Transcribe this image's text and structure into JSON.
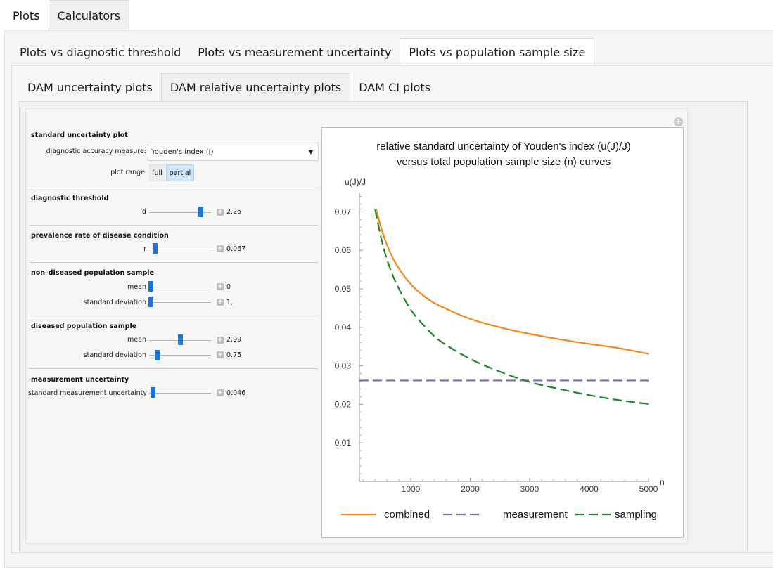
{
  "tabs_top": [
    "Plots",
    "Calculators"
  ],
  "tabs_plots": [
    "Plots vs diagnostic threshold",
    "Plots vs measurement uncertainty",
    "Plots vs population sample size"
  ],
  "tabs_dam": [
    "DAM uncertainty plots",
    "DAM relative uncertainty plots",
    "DAM CI plots"
  ],
  "controls": {
    "section1": "standard uncertainty plot",
    "dam_label": "diagnostic accuracy measure:",
    "dam_value": "Youden's index (J)",
    "range_label": "plot range",
    "range_full": "full",
    "range_partial": "partial",
    "range_selected": "partial",
    "section2": "diagnostic threshold",
    "d_label": "d",
    "d_value": "2.26",
    "section3": "prevalence rate of disease condition",
    "r_label": "r",
    "r_value": "0.067",
    "section4": "non–diseased population sample",
    "nd_mean_label": "mean",
    "nd_mean_value": "0",
    "nd_sd_label": "standard deviation",
    "nd_sd_value": "1.",
    "section5": "diseased population sample",
    "d_mean_label": "mean",
    "d_mean_value": "2.99",
    "d_sd_label": "standard deviation",
    "d_sd_value": "0.75",
    "section6": "measurement uncertainty",
    "mu_label": "standard measurement uncertainty",
    "mu_value": "0.046"
  },
  "chart_data": {
    "type": "line",
    "title": "relative standard uncertainty of Youden's index (u(J)/J)",
    "subtitle": "versus total population sample size (n) curves",
    "xlabel": "n",
    "ylabel": "u(J)/J",
    "xlim": [
      0,
      5000
    ],
    "ylim": [
      0,
      0.075
    ],
    "xticks": [
      1000,
      2000,
      3000,
      4000,
      5000
    ],
    "yticks": [
      0.01,
      0.02,
      0.03,
      0.04,
      0.05,
      0.06,
      0.07
    ],
    "xtick_labels": [
      "1000",
      "2000",
      "3000",
      "4000",
      "5000"
    ],
    "ytick_labels": [
      "0.01",
      "0.02",
      "0.03",
      "0.04",
      "0.05",
      "0.06",
      "0.07"
    ],
    "legend_position": "bottom",
    "series": [
      {
        "name": "combined",
        "color": "#f7861d",
        "dash": "solid",
        "x": [
          420,
          500,
          600,
          750,
          1000,
          1250,
          1500,
          2000,
          2500,
          3000,
          3500,
          4000,
          4500,
          5000
        ],
        "y": [
          0.0706,
          0.0659,
          0.0614,
          0.0565,
          0.0512,
          0.0478,
          0.0455,
          0.0422,
          0.04,
          0.0383,
          0.0369,
          0.0357,
          0.0346,
          0.0331
        ]
      },
      {
        "name": "measurement",
        "color": "#7b68d8",
        "dash": "long",
        "x": [
          0,
          5000
        ],
        "y": [
          0.0262,
          0.0262
        ]
      },
      {
        "name": "sampling",
        "color": "#1d8a2a",
        "dash": "long",
        "x": [
          400,
          500,
          600,
          750,
          1000,
          1250,
          1500,
          2000,
          2500,
          3000,
          3500,
          4000,
          4500,
          5000
        ],
        "y": [
          0.0706,
          0.0633,
          0.0576,
          0.0516,
          0.0446,
          0.04,
          0.0364,
          0.0318,
          0.0285,
          0.0258,
          0.024,
          0.0224,
          0.0211,
          0.0201
        ]
      }
    ]
  }
}
